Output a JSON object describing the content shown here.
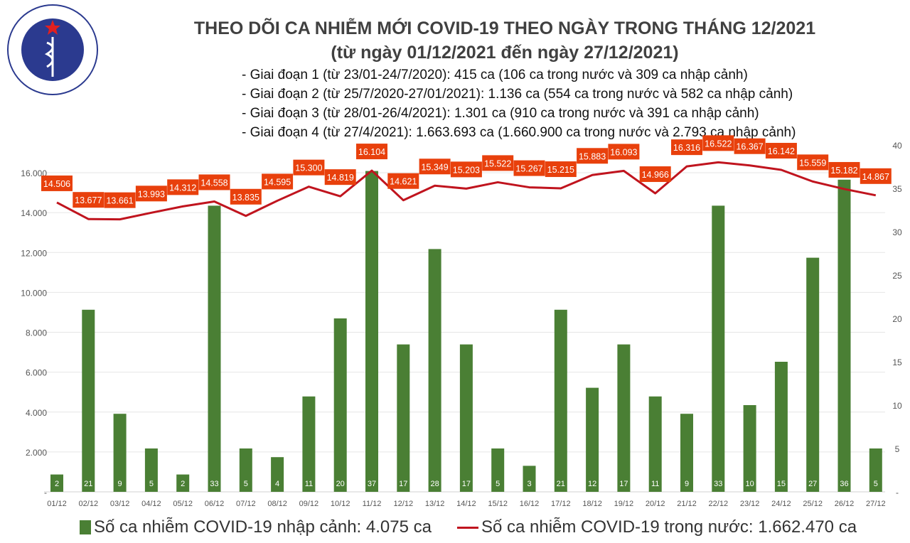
{
  "logo": {
    "text_top": "BỘ Y TẾ",
    "text_bottom": "MINISTRY OF HEALTH"
  },
  "header": {
    "title": "THEO DÕI CA NHIỄM MỚI COVID-19 THEO NGÀY TRONG THÁNG 12/2021",
    "subtitle": "(từ ngày 01/12/2021 đến ngày 27/12/2021)",
    "notes": [
      "- Giai đoạn 1 (từ 23/01-24/7/2020): 415 ca (106 ca trong nước và 309 ca nhập cảnh)",
      "- Giai đoạn 2 (từ 25/7/2020-27/01/2021): 1.136 ca (554 ca trong nước và 582 ca nhập cảnh)",
      "- Giai đoạn 3 (từ 28/01-26/4/2021): 1.301 ca (910 ca trong nước và 391 ca nhập cảnh)",
      "- Giai đoạn 4 (từ 27/4/2021): 1.663.693 ca (1.660.900 ca trong nước và 2.793 ca nhập cảnh)"
    ]
  },
  "chart_data": {
    "type": "bar+line",
    "categories": [
      "01/12",
      "02/12",
      "03/12",
      "04/12",
      "05/12",
      "06/12",
      "07/12",
      "08/12",
      "09/12",
      "10/12",
      "11/12",
      "12/12",
      "13/12",
      "14/12",
      "15/12",
      "16/12",
      "17/12",
      "18/12",
      "19/12",
      "20/12",
      "21/12",
      "22/12",
      "23/12",
      "24/12",
      "25/12",
      "26/12",
      "27/12"
    ],
    "series": [
      {
        "name": "Số ca nhiễm COVID-19 nhập cảnh: 4.075 ca",
        "type": "bar",
        "axis": "right",
        "color": "#4a7f34",
        "values": [
          2,
          21,
          9,
          5,
          2,
          33,
          5,
          4,
          11,
          20,
          37,
          17,
          28,
          17,
          5,
          3,
          21,
          12,
          17,
          11,
          9,
          33,
          10,
          15,
          27,
          36,
          5
        ]
      },
      {
        "name": "Số ca nhiễm COVID-19 trong nước: 1.662.470 ca",
        "type": "line",
        "axis": "left",
        "color": "#c0141e",
        "label_bg": "#e8400c",
        "values": [
          14506,
          13677,
          13661,
          13993,
          14312,
          14558,
          13835,
          14595,
          15300,
          14819,
          16104,
          14621,
          15349,
          15203,
          15522,
          15267,
          15215,
          15883,
          16093,
          14966,
          16316,
          16522,
          16367,
          16142,
          15559,
          15182,
          14867
        ],
        "labels": [
          "14.506",
          "13.677",
          "13.661",
          "13.993",
          "14.312",
          "14.558",
          "13.835",
          "14.595",
          "15.300",
          "14.819",
          "16.104",
          "14.621",
          "15.349",
          "15.203",
          "15.522",
          "15.267",
          "15.215",
          "15.883",
          "16.093",
          "14.966",
          "16.316",
          "16.522",
          "16.367",
          "16.142",
          "15.559",
          "15.182",
          "14.867"
        ]
      }
    ],
    "left_axis": {
      "ticks": [
        0,
        2000,
        4000,
        6000,
        8000,
        10000,
        12000,
        14000,
        16000
      ],
      "tick_labels": [
        "-",
        "2.000",
        "4.000",
        "6.000",
        "8.000",
        "10.000",
        "12.000",
        "14.000",
        "16.000"
      ],
      "ylim": [
        0,
        17390
      ]
    },
    "right_axis": {
      "ticks": [
        0,
        5,
        10,
        15,
        20,
        25,
        30,
        35,
        40
      ],
      "tick_labels": [
        "-",
        "5",
        "10",
        "15",
        "20",
        "25",
        "30",
        "35",
        "40"
      ],
      "ylim": [
        0,
        40
      ]
    },
    "grid": true,
    "legend": "bottom"
  }
}
